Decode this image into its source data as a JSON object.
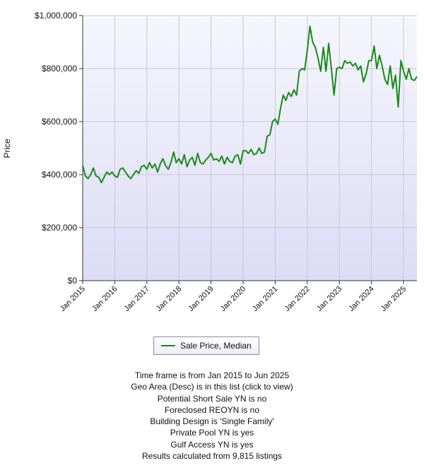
{
  "chart_data": {
    "type": "line",
    "ylabel": "Price",
    "ylim": [
      0,
      1000000
    ],
    "y_ticks": [
      "$0",
      "$200,000",
      "$400,000",
      "$600,000",
      "$800,000",
      "$1,000,000"
    ],
    "y_tick_values": [
      0,
      200000,
      400000,
      600000,
      800000,
      1000000
    ],
    "x_ticks": [
      "Jan 2015",
      "Jan 2016",
      "Jan 2017",
      "Jan 2018",
      "Jan 2019",
      "Jan 2020",
      "Jan 2021",
      "Jan 2022",
      "Jan 2023",
      "Jan 2024",
      "Jan 2025"
    ],
    "xlim": [
      "2015-01",
      "2025-06"
    ],
    "grid": true,
    "legend_position": "bottom",
    "colors": {
      "series": "#1a8a1a",
      "plot_bg_top": "#f6f6fd",
      "plot_bg_bottom": "#dcdcf4",
      "grid": "#c8c8d8"
    },
    "series": [
      {
        "name": "Sale Price, Median",
        "x": [
          "2015-01",
          "2015-02",
          "2015-03",
          "2015-04",
          "2015-05",
          "2015-06",
          "2015-07",
          "2015-08",
          "2015-09",
          "2015-10",
          "2015-11",
          "2015-12",
          "2016-01",
          "2016-02",
          "2016-03",
          "2016-04",
          "2016-05",
          "2016-06",
          "2016-07",
          "2016-08",
          "2016-09",
          "2016-10",
          "2016-11",
          "2016-12",
          "2017-01",
          "2017-02",
          "2017-03",
          "2017-04",
          "2017-05",
          "2017-06",
          "2017-07",
          "2017-08",
          "2017-09",
          "2017-10",
          "2017-11",
          "2017-12",
          "2018-01",
          "2018-02",
          "2018-03",
          "2018-04",
          "2018-05",
          "2018-06",
          "2018-07",
          "2018-08",
          "2018-09",
          "2018-10",
          "2018-11",
          "2018-12",
          "2019-01",
          "2019-02",
          "2019-03",
          "2019-04",
          "2019-05",
          "2019-06",
          "2019-07",
          "2019-08",
          "2019-09",
          "2019-10",
          "2019-11",
          "2019-12",
          "2020-01",
          "2020-02",
          "2020-03",
          "2020-04",
          "2020-05",
          "2020-06",
          "2020-07",
          "2020-08",
          "2020-09",
          "2020-10",
          "2020-11",
          "2020-12",
          "2021-01",
          "2021-02",
          "2021-03",
          "2021-04",
          "2021-05",
          "2021-06",
          "2021-07",
          "2021-08",
          "2021-09",
          "2021-10",
          "2021-11",
          "2021-12",
          "2022-01",
          "2022-02",
          "2022-03",
          "2022-04",
          "2022-05",
          "2022-06",
          "2022-07",
          "2022-08",
          "2022-09",
          "2022-10",
          "2022-11",
          "2022-12",
          "2023-01",
          "2023-02",
          "2023-03",
          "2023-04",
          "2023-05",
          "2023-06",
          "2023-07",
          "2023-08",
          "2023-09",
          "2023-10",
          "2023-11",
          "2023-12",
          "2024-01",
          "2024-02",
          "2024-03",
          "2024-04",
          "2024-05",
          "2024-06",
          "2024-07",
          "2024-08",
          "2024-09",
          "2024-10",
          "2024-11",
          "2024-12",
          "2025-01",
          "2025-02",
          "2025-03",
          "2025-04",
          "2025-05",
          "2025-06"
        ],
        "values": [
          435000,
          395000,
          385000,
          400000,
          425000,
          395000,
          390000,
          370000,
          390000,
          410000,
          400000,
          410000,
          395000,
          390000,
          420000,
          425000,
          410000,
          395000,
          385000,
          400000,
          415000,
          405000,
          430000,
          435000,
          420000,
          445000,
          425000,
          440000,
          410000,
          440000,
          460000,
          435000,
          420000,
          445000,
          485000,
          445000,
          460000,
          440000,
          475000,
          430000,
          455000,
          465000,
          435000,
          480000,
          445000,
          440000,
          455000,
          465000,
          480000,
          455000,
          460000,
          450000,
          470000,
          440000,
          465000,
          450000,
          445000,
          470000,
          475000,
          440000,
          490000,
          490000,
          480000,
          495000,
          475000,
          480000,
          500000,
          480000,
          485000,
          545000,
          550000,
          600000,
          610000,
          590000,
          650000,
          700000,
          680000,
          710000,
          695000,
          720000,
          700000,
          790000,
          800000,
          795000,
          870000,
          960000,
          900000,
          880000,
          840000,
          790000,
          880000,
          790000,
          895000,
          800000,
          700000,
          800000,
          805000,
          800000,
          830000,
          820000,
          825000,
          810000,
          820000,
          795000,
          810000,
          750000,
          780000,
          830000,
          830000,
          885000,
          800000,
          850000,
          810000,
          760000,
          740000,
          810000,
          725000,
          775000,
          655000,
          830000,
          790000,
          760000,
          800000,
          760000,
          755000,
          770000
        ]
      }
    ]
  },
  "legend": {
    "label": "Sale Price, Median"
  },
  "criteria": [
    "Time frame is from Jan 2015 to Jun 2025",
    "Geo Area (Desc) is in this list (click to view)",
    "Potential Short Sale YN is no",
    "Foreclosed REOYN is no",
    "Building Design is 'Single Family'",
    "Private Pool YN is yes",
    "Gulf Access YN is yes"
  ],
  "results": "Results calculated from 9,815 listings"
}
